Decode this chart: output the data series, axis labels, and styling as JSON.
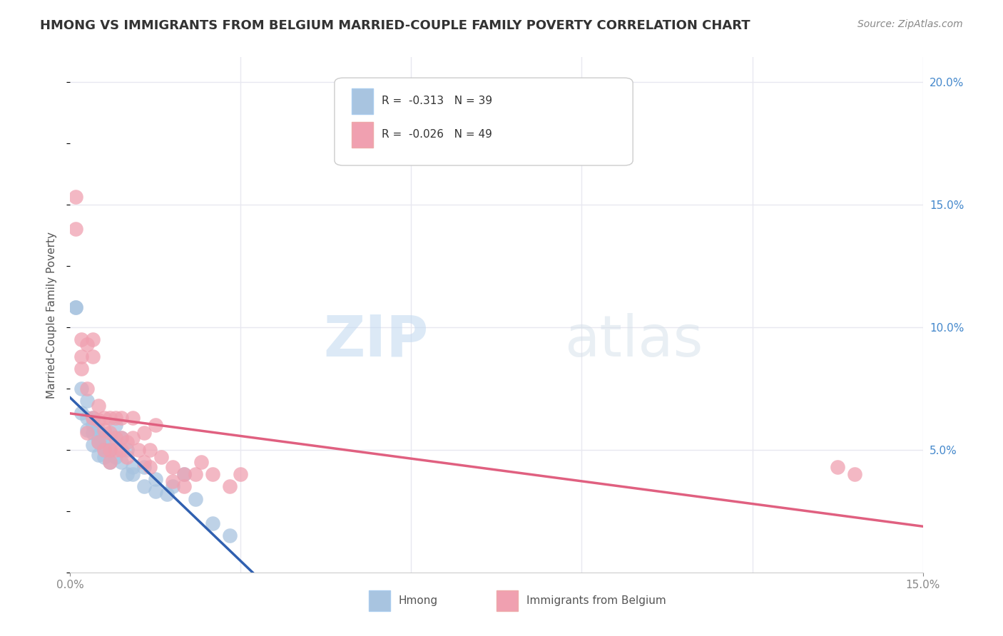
{
  "title": "HMONG VS IMMIGRANTS FROM BELGIUM MARRIED-COUPLE FAMILY POVERTY CORRELATION CHART",
  "source": "Source: ZipAtlas.com",
  "xlabel": "",
  "ylabel": "Married-Couple Family Poverty",
  "xlim": [
    0,
    0.15
  ],
  "ylim": [
    0,
    0.21
  ],
  "yticks_right": [
    0.0,
    0.05,
    0.1,
    0.15,
    0.2
  ],
  "yticklabels_right": [
    "",
    "5.0%",
    "10.0%",
    "15.0%",
    "20.0%"
  ],
  "hmong_label": "Hmong",
  "belgium_label": "Immigrants from Belgium",
  "hmong_R": "-0.313",
  "hmong_N": "39",
  "belgium_R": "-0.026",
  "belgium_N": "49",
  "hmong_color": "#a8c4e0",
  "belgium_color": "#f0a0b0",
  "hmong_line_color": "#3060b0",
  "belgium_line_color": "#e06080",
  "background_color": "#ffffff",
  "grid_color": "#e8e8f0",
  "watermark_zip": "ZIP",
  "watermark_atlas": "atlas",
  "hmong_x": [
    0.001,
    0.001,
    0.002,
    0.002,
    0.003,
    0.003,
    0.003,
    0.004,
    0.004,
    0.004,
    0.004,
    0.005,
    0.005,
    0.005,
    0.005,
    0.006,
    0.006,
    0.006,
    0.007,
    0.007,
    0.007,
    0.008,
    0.008,
    0.009,
    0.009,
    0.01,
    0.01,
    0.011,
    0.011,
    0.013,
    0.013,
    0.015,
    0.015,
    0.017,
    0.018,
    0.02,
    0.022,
    0.025,
    0.028
  ],
  "hmong_y": [
    0.108,
    0.108,
    0.065,
    0.075,
    0.063,
    0.058,
    0.07,
    0.063,
    0.06,
    0.057,
    0.052,
    0.058,
    0.055,
    0.053,
    0.048,
    0.055,
    0.05,
    0.047,
    0.055,
    0.05,
    0.045,
    0.06,
    0.047,
    0.055,
    0.045,
    0.05,
    0.04,
    0.043,
    0.04,
    0.043,
    0.035,
    0.038,
    0.033,
    0.032,
    0.035,
    0.04,
    0.03,
    0.02,
    0.015
  ],
  "belgium_x": [
    0.001,
    0.001,
    0.002,
    0.002,
    0.002,
    0.003,
    0.003,
    0.003,
    0.004,
    0.004,
    0.004,
    0.005,
    0.005,
    0.005,
    0.006,
    0.006,
    0.006,
    0.007,
    0.007,
    0.007,
    0.007,
    0.008,
    0.008,
    0.008,
    0.009,
    0.009,
    0.009,
    0.01,
    0.01,
    0.011,
    0.011,
    0.012,
    0.013,
    0.013,
    0.014,
    0.014,
    0.015,
    0.016,
    0.018,
    0.018,
    0.02,
    0.02,
    0.022,
    0.023,
    0.025,
    0.028,
    0.03,
    0.135,
    0.138
  ],
  "belgium_y": [
    0.153,
    0.14,
    0.088,
    0.095,
    0.083,
    0.075,
    0.093,
    0.057,
    0.095,
    0.088,
    0.063,
    0.068,
    0.062,
    0.053,
    0.063,
    0.058,
    0.05,
    0.063,
    0.057,
    0.05,
    0.045,
    0.063,
    0.055,
    0.05,
    0.063,
    0.055,
    0.05,
    0.053,
    0.047,
    0.055,
    0.063,
    0.05,
    0.057,
    0.045,
    0.05,
    0.043,
    0.06,
    0.047,
    0.043,
    0.037,
    0.04,
    0.035,
    0.04,
    0.045,
    0.04,
    0.035,
    0.04,
    0.043,
    0.04
  ]
}
